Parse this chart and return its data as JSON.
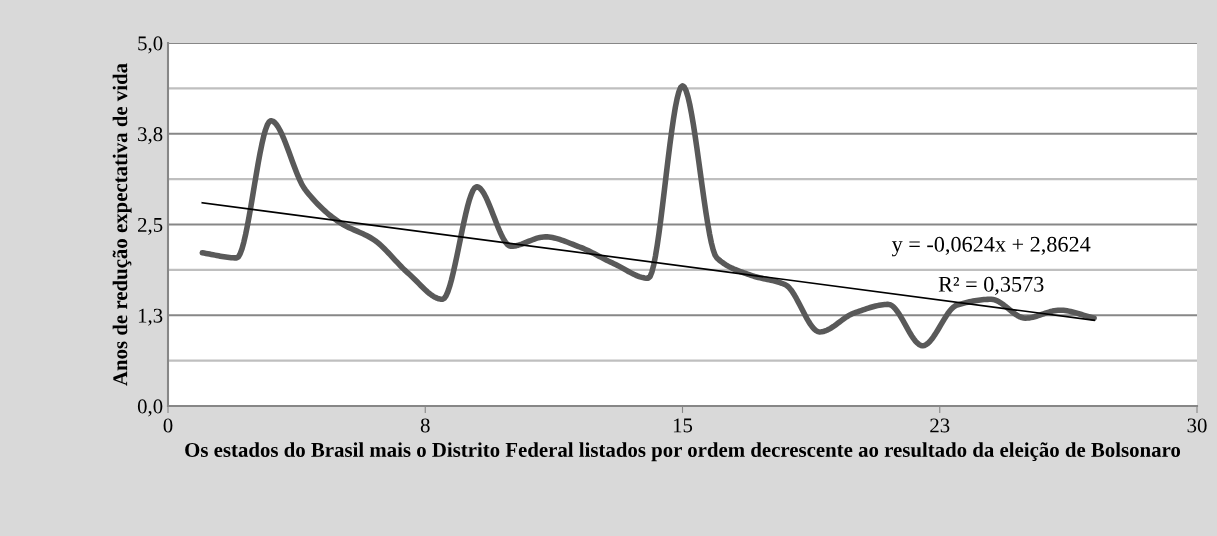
{
  "chart_data": {
    "type": "line",
    "xlabel": "Os estados do Brasil mais o Distrito Federal listados por ordem decrescente ao resultado da eleição de Bolsonaro",
    "ylabel": "Anos de redução expectativa de vida",
    "series": [
      {
        "color": "#595959",
        "x": [
          1,
          2,
          3,
          4,
          5,
          6,
          7,
          8,
          9,
          10,
          11,
          12,
          13,
          14,
          15,
          16,
          17,
          18,
          19,
          20,
          21,
          22,
          23,
          24,
          25,
          26,
          27
        ],
        "values": [
          2.11,
          2.04,
          3.93,
          2.98,
          2.53,
          2.29,
          1.83,
          1.47,
          3.02,
          2.2,
          2.33,
          2.19,
          1.96,
          1.76,
          4.41,
          2.04,
          1.8,
          1.67,
          1.02,
          1.28,
          1.4,
          0.83,
          1.39,
          1.47,
          1.21,
          1.32,
          1.21
        ]
      },
      {
        "color": "#000000",
        "x": [
          1,
          27
        ],
        "values": [
          2.8,
          1.18
        ]
      }
    ],
    "annotations": [
      "y = -0,0624x + 2,8624",
      "R² = 0,3573"
    ],
    "xlim": [
      0,
      30
    ],
    "xticks": [
      0,
      {
        "value": 7.5,
        "label": "8"
      },
      15,
      {
        "value": 22.5,
        "label": "23"
      },
      30
    ],
    "ylim": [
      0,
      5
    ],
    "yticks": [
      {
        "value": 0,
        "label": "0,0"
      },
      {
        "value": 0.625,
        "label": null
      },
      {
        "value": 1.25,
        "label": "1,3"
      },
      {
        "value": 1.875,
        "label": null
      },
      {
        "value": 2.5,
        "label": "2,5"
      },
      {
        "value": 3.125,
        "label": null
      },
      {
        "value": 3.75,
        "label": "3,8"
      },
      {
        "value": 4.375,
        "label": null
      },
      {
        "value": 5,
        "label": "5,0"
      }
    ],
    "grid": "y",
    "legend": false,
    "marker": "none",
    "line_style": "solid"
  }
}
